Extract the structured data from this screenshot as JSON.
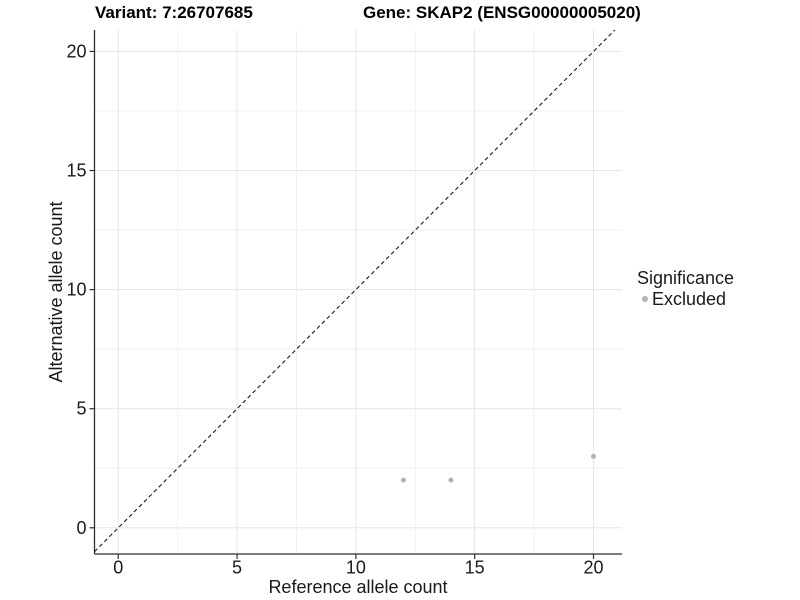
{
  "header": {
    "variant_title": "Variant: 7:26707685",
    "gene_title": "Gene: SKAP2 (ENSG00000005020)"
  },
  "chart_data": {
    "type": "scatter",
    "xlabel": "Reference allele count",
    "ylabel": "Alternative allele count",
    "xlim": [
      -1,
      21.2
    ],
    "ylim": [
      -1.1,
      20.9
    ],
    "xticks": [
      0,
      5,
      10,
      15,
      20
    ],
    "yticks": [
      0,
      5,
      10,
      15,
      20
    ],
    "minor_ticks": [
      2.5,
      7.5,
      12.5,
      17.5
    ],
    "grid": "major+minor",
    "abline": {
      "slope": 1,
      "intercept": 0,
      "style": "dashed",
      "color": "#1a1a1a"
    },
    "series": [
      {
        "name": "Excluded",
        "color": "#b3b3b3",
        "points": [
          {
            "x": 12,
            "y": 2
          },
          {
            "x": 14,
            "y": 2
          },
          {
            "x": 20,
            "y": 3
          }
        ]
      }
    ],
    "legend": {
      "position": "right",
      "title": "Significance",
      "items": [
        {
          "label": "Excluded",
          "color": "#b3b3b3"
        }
      ]
    },
    "colors": {
      "axis_line": "#2e2e2e",
      "tick_mark": "#2e2e2e",
      "grid_major": "#e6e6e6",
      "grid_minor": "#f1f1f1",
      "tick_label": "#1a1a1a",
      "background": "#ffffff"
    }
  }
}
